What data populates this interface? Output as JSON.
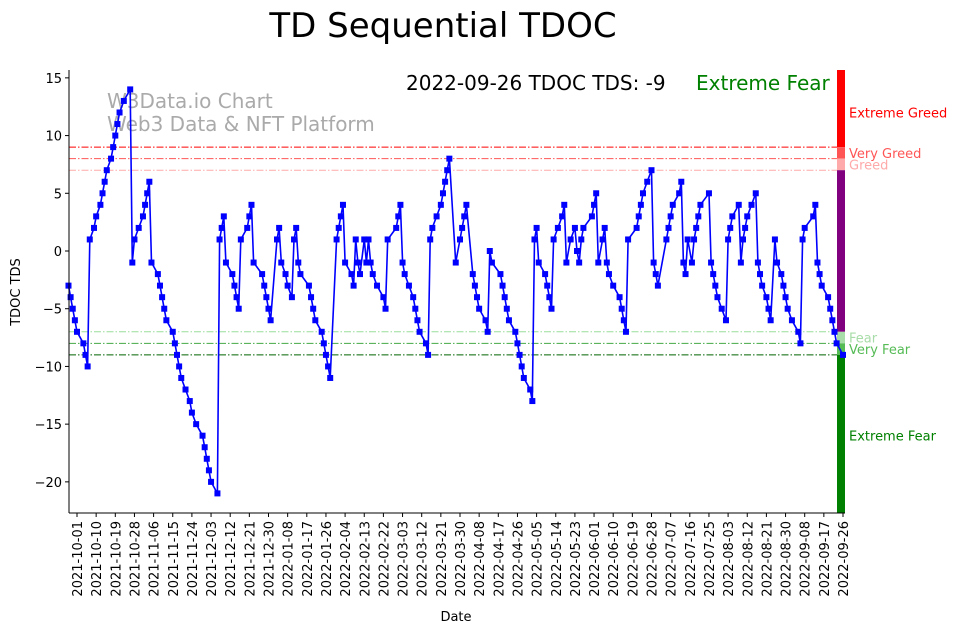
{
  "chart_data": {
    "type": "line",
    "title": "TD Sequential TDOC",
    "annotation": {
      "date": "2022-09-26",
      "label": "2022-09-26 TDOC TDS: -9",
      "status": "Extreme Fear",
      "status_color": "#008000"
    },
    "watermark": [
      "W3Data.io Chart",
      "Web3 Data & NFT Platform"
    ],
    "xlabel": "Date",
    "ylabel": "TDOC TDS",
    "ylim": [
      -22.7,
      15.8
    ],
    "yticks": [
      15,
      10,
      5,
      0,
      -5,
      -10,
      -15,
      -20
    ],
    "x_unit": "days since 2021-10-01",
    "xlim": [
      -3.7,
      361
    ],
    "xtick_days_step": 9,
    "xtick_labels": [
      "2021-10-01",
      "2021-10-10",
      "2021-10-19",
      "2021-10-28",
      "2021-11-06",
      "2021-11-15",
      "2021-11-24",
      "2021-12-03",
      "2021-12-12",
      "2021-12-21",
      "2021-12-30",
      "2022-01-08",
      "2022-01-17",
      "2022-01-26",
      "2022-02-04",
      "2022-02-13",
      "2022-02-22",
      "2022-03-03",
      "2022-03-12",
      "2022-03-21",
      "2022-03-30",
      "2022-04-08",
      "2022-04-17",
      "2022-04-26",
      "2022-05-05",
      "2022-05-14",
      "2022-05-23",
      "2022-06-01",
      "2022-06-10",
      "2022-06-19",
      "2022-06-28",
      "2022-07-07",
      "2022-07-16",
      "2022-07-25",
      "2022-08-03",
      "2022-08-12",
      "2022-08-21",
      "2022-08-30",
      "2022-09-08",
      "2022-09-17",
      "2022-09-26"
    ],
    "series": [
      {
        "name": "TDS",
        "color": "#0000ff",
        "marker": "square",
        "points": [
          [
            -4,
            -3
          ],
          [
            -3,
            -4
          ],
          [
            -2,
            -5
          ],
          [
            -1,
            -6
          ],
          [
            0,
            -7
          ],
          [
            3,
            -8
          ],
          [
            4,
            -9
          ],
          [
            5,
            -10
          ],
          [
            6,
            1
          ],
          [
            8,
            2
          ],
          [
            9,
            3
          ],
          [
            11,
            4
          ],
          [
            12,
            5
          ],
          [
            13,
            6
          ],
          [
            14,
            7
          ],
          [
            16,
            8
          ],
          [
            17,
            9
          ],
          [
            18,
            10
          ],
          [
            19,
            11
          ],
          [
            20,
            12
          ],
          [
            22,
            13
          ],
          [
            25,
            14
          ],
          [
            26,
            -1
          ],
          [
            27,
            1
          ],
          [
            29,
            2
          ],
          [
            31,
            3
          ],
          [
            32,
            4
          ],
          [
            33,
            5
          ],
          [
            34,
            6
          ],
          [
            35,
            -1
          ],
          [
            38,
            -2
          ],
          [
            39,
            -3
          ],
          [
            40,
            -4
          ],
          [
            41,
            -5
          ],
          [
            42,
            -6
          ],
          [
            45,
            -7
          ],
          [
            46,
            -8
          ],
          [
            47,
            -9
          ],
          [
            48,
            -10
          ],
          [
            49,
            -11
          ],
          [
            51,
            -12
          ],
          [
            53,
            -13
          ],
          [
            54,
            -14
          ],
          [
            56,
            -15
          ],
          [
            59,
            -16
          ],
          [
            60,
            -17
          ],
          [
            61,
            -18
          ],
          [
            62,
            -19
          ],
          [
            63,
            -20
          ],
          [
            66,
            -21
          ],
          [
            67,
            1
          ],
          [
            68,
            2
          ],
          [
            69,
            3
          ],
          [
            70,
            -1
          ],
          [
            73,
            -2
          ],
          [
            74,
            -3
          ],
          [
            75,
            -4
          ],
          [
            76,
            -5
          ],
          [
            77,
            1
          ],
          [
            80,
            2
          ],
          [
            81,
            3
          ],
          [
            82,
            4
          ],
          [
            83,
            -1
          ],
          [
            87,
            -2
          ],
          [
            88,
            -3
          ],
          [
            89,
            -4
          ],
          [
            90,
            -5
          ],
          [
            91,
            -6
          ],
          [
            94,
            1
          ],
          [
            95,
            2
          ],
          [
            96,
            -1
          ],
          [
            98,
            -2
          ],
          [
            99,
            -3
          ],
          [
            101,
            -4
          ],
          [
            102,
            1
          ],
          [
            103,
            2
          ],
          [
            104,
            -1
          ],
          [
            105,
            -2
          ],
          [
            109,
            -3
          ],
          [
            110,
            -4
          ],
          [
            111,
            -5
          ],
          [
            112,
            -6
          ],
          [
            115,
            -7
          ],
          [
            116,
            -8
          ],
          [
            117,
            -9
          ],
          [
            118,
            -10
          ],
          [
            119,
            -11
          ],
          [
            122,
            1
          ],
          [
            123,
            2
          ],
          [
            124,
            3
          ],
          [
            125,
            4
          ],
          [
            126,
            -1
          ],
          [
            129,
            -2
          ],
          [
            130,
            -3
          ],
          [
            131,
            1
          ],
          [
            132,
            -1
          ],
          [
            133,
            -2
          ],
          [
            135,
            1
          ],
          [
            136,
            -1
          ],
          [
            137,
            1
          ],
          [
            138,
            -1
          ],
          [
            139,
            -2
          ],
          [
            141,
            -3
          ],
          [
            144,
            -4
          ],
          [
            145,
            -5
          ],
          [
            146,
            1
          ],
          [
            150,
            2
          ],
          [
            151,
            3
          ],
          [
            152,
            4
          ],
          [
            153,
            -1
          ],
          [
            154,
            -2
          ],
          [
            156,
            -3
          ],
          [
            158,
            -4
          ],
          [
            159,
            -5
          ],
          [
            160,
            -6
          ],
          [
            161,
            -7
          ],
          [
            164,
            -8
          ],
          [
            165,
            -9
          ],
          [
            166,
            1
          ],
          [
            167,
            2
          ],
          [
            169,
            3
          ],
          [
            171,
            4
          ],
          [
            172,
            5
          ],
          [
            173,
            6
          ],
          [
            174,
            7
          ],
          [
            175,
            8
          ],
          [
            178,
            -1
          ],
          [
            180,
            1
          ],
          [
            181,
            2
          ],
          [
            182,
            3
          ],
          [
            183,
            4
          ],
          [
            186,
            -2
          ],
          [
            187,
            -3
          ],
          [
            188,
            -4
          ],
          [
            189,
            -5
          ],
          [
            192,
            -6
          ],
          [
            193,
            -7
          ],
          [
            194,
            0
          ],
          [
            195,
            -1
          ],
          [
            199,
            -2
          ],
          [
            200,
            -3
          ],
          [
            201,
            -4
          ],
          [
            202,
            -5
          ],
          [
            203,
            -6
          ],
          [
            206,
            -7
          ],
          [
            207,
            -8
          ],
          [
            208,
            -9
          ],
          [
            209,
            -10
          ],
          [
            210,
            -11
          ],
          [
            213,
            -12
          ],
          [
            214,
            -13
          ],
          [
            215,
            1
          ],
          [
            216,
            2
          ],
          [
            217,
            -1
          ],
          [
            220,
            -2
          ],
          [
            221,
            -3
          ],
          [
            222,
            -4
          ],
          [
            223,
            -5
          ],
          [
            224,
            1
          ],
          [
            226,
            2
          ],
          [
            228,
            3
          ],
          [
            229,
            4
          ],
          [
            230,
            -1
          ],
          [
            232,
            1
          ],
          [
            234,
            2
          ],
          [
            235,
            0
          ],
          [
            236,
            -1
          ],
          [
            237,
            1
          ],
          [
            238,
            2
          ],
          [
            242,
            3
          ],
          [
            243,
            4
          ],
          [
            244,
            5
          ],
          [
            245,
            -1
          ],
          [
            247,
            1
          ],
          [
            248,
            2
          ],
          [
            249,
            -1
          ],
          [
            250,
            -2
          ],
          [
            252,
            -3
          ],
          [
            255,
            -4
          ],
          [
            256,
            -5
          ],
          [
            257,
            -6
          ],
          [
            258,
            -7
          ],
          [
            259,
            1
          ],
          [
            263,
            2
          ],
          [
            264,
            3
          ],
          [
            265,
            4
          ],
          [
            266,
            5
          ],
          [
            268,
            6
          ],
          [
            270,
            7
          ],
          [
            271,
            -1
          ],
          [
            272,
            -2
          ],
          [
            273,
            -3
          ],
          [
            277,
            1
          ],
          [
            278,
            2
          ],
          [
            279,
            3
          ],
          [
            280,
            4
          ],
          [
            283,
            5
          ],
          [
            284,
            6
          ],
          [
            285,
            -1
          ],
          [
            286,
            -2
          ],
          [
            287,
            1
          ],
          [
            289,
            -1
          ],
          [
            290,
            1
          ],
          [
            291,
            2
          ],
          [
            292,
            3
          ],
          [
            293,
            4
          ],
          [
            297,
            5
          ],
          [
            298,
            -1
          ],
          [
            299,
            -2
          ],
          [
            300,
            -3
          ],
          [
            301,
            -4
          ],
          [
            303,
            -5
          ],
          [
            305,
            -6
          ],
          [
            306,
            1
          ],
          [
            307,
            2
          ],
          [
            308,
            3
          ],
          [
            311,
            4
          ],
          [
            312,
            -1
          ],
          [
            313,
            1
          ],
          [
            314,
            2
          ],
          [
            315,
            3
          ],
          [
            317,
            4
          ],
          [
            319,
            5
          ],
          [
            320,
            -1
          ],
          [
            321,
            -2
          ],
          [
            322,
            -3
          ],
          [
            324,
            -4
          ],
          [
            325,
            -5
          ],
          [
            326,
            -6
          ],
          [
            328,
            1
          ],
          [
            329,
            -1
          ],
          [
            331,
            -2
          ],
          [
            332,
            -3
          ],
          [
            333,
            -4
          ],
          [
            334,
            -5
          ],
          [
            336,
            -6
          ],
          [
            339,
            -7
          ],
          [
            340,
            -8
          ],
          [
            341,
            1
          ],
          [
            342,
            2
          ],
          [
            346,
            3
          ],
          [
            347,
            4
          ],
          [
            348,
            -1
          ],
          [
            349,
            -2
          ],
          [
            350,
            -3
          ],
          [
            353,
            -4
          ],
          [
            354,
            -5
          ],
          [
            355,
            -6
          ],
          [
            356,
            -7
          ],
          [
            357,
            -8
          ],
          [
            360,
            -9
          ]
        ]
      }
    ],
    "hlines": [
      {
        "y": 9,
        "color": "#ff0000"
      },
      {
        "y": 8,
        "color": "#ff5555"
      },
      {
        "y": 7,
        "color": "#ffaaaa"
      },
      {
        "y": -7,
        "color": "#99dd99"
      },
      {
        "y": -8,
        "color": "#44aa44"
      },
      {
        "y": -9,
        "color": "#006400"
      }
    ],
    "zones": [
      {
        "label": "Extreme Greed",
        "from": 9,
        "to": 15.8,
        "bar_color": "#ff0000",
        "text_color": "#ff0000",
        "label_y": 12
      },
      {
        "label": "Very Greed",
        "from": 8,
        "to": 9,
        "bar_color": "#ff5555",
        "text_color": "#ff5555",
        "label_y": 8.5
      },
      {
        "label": "Greed",
        "from": 7,
        "to": 8,
        "bar_color": "#ffaaaa",
        "text_color": "#ffaaaa",
        "label_y": 7.5
      },
      {
        "label": "",
        "from": -7,
        "to": 7,
        "bar_color": "#800080",
        "text_color": "#800080",
        "label_y": 0
      },
      {
        "label": "Fear",
        "from": -8,
        "to": -7,
        "bar_color": "#a8dca8",
        "text_color": "#a8dca8",
        "label_y": -7.5
      },
      {
        "label": "Very Fear",
        "from": -9,
        "to": -8,
        "bar_color": "#55bb55",
        "text_color": "#55bb55",
        "label_y": -8.5
      },
      {
        "label": "Extreme Fear",
        "from": -22.7,
        "to": -9,
        "bar_color": "#008000",
        "text_color": "#008000",
        "label_y": -16
      }
    ],
    "grid": false,
    "legend": "none"
  }
}
